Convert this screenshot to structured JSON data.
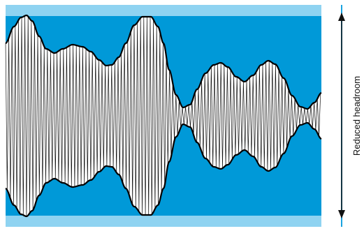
{
  "diagram": {
    "side_label": "Reduced headroom",
    "colors": {
      "background": "#ffffff",
      "margin_band": "#8fd3f1",
      "field": "#0099d8",
      "envelope_fill": "#ffffff",
      "envelope_line": "#000000",
      "carrier": "#111111",
      "accent_line": "#1aa3e0",
      "arrow": "#111111",
      "label": "#111111"
    }
  }
}
